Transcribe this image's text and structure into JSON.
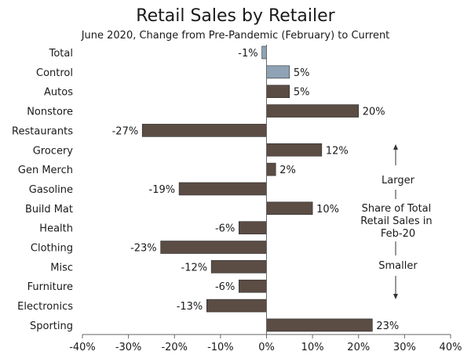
{
  "chart_data": {
    "type": "bar",
    "orientation": "horizontal",
    "title": "Retail Sales by Retailer",
    "subtitle": "June 2020, Change from Pre-Pandemic (February) to Current",
    "categories": [
      "Total",
      "Control",
      "Autos",
      "Nonstore",
      "Restaurants",
      "Grocery",
      "Gen Merch",
      "Gasoline",
      "Build Mat",
      "Health",
      "Clothing",
      "Misc",
      "Furniture",
      "Electronics",
      "Sporting"
    ],
    "values": [
      -1,
      5,
      5,
      20,
      -27,
      12,
      2,
      -19,
      10,
      -6,
      -23,
      -12,
      -6,
      -13,
      23
    ],
    "value_labels": [
      "-1%",
      "5%",
      "5%",
      "20%",
      "-27%",
      "12%",
      "2%",
      "-19%",
      "10%",
      "-6%",
      "-23%",
      "-12%",
      "-6%",
      "-13%",
      "23%"
    ],
    "highlighted_categories": [
      "Total",
      "Control"
    ],
    "xlim": [
      -40,
      40
    ],
    "xticks": [
      -40,
      -30,
      -20,
      -10,
      0,
      10,
      20,
      30,
      40
    ],
    "xtick_labels": [
      "-40%",
      "-30%",
      "-20%",
      "-10%",
      "0%",
      "10%",
      "20%",
      "30%",
      "40%"
    ],
    "xlabel": "",
    "ylabel": "",
    "grid": false,
    "colors": {
      "bar": "#5b4c44",
      "highlight": "#8fa3b6",
      "bar_edge": "#2b2b2b",
      "axis": "#666666",
      "arrow": "#333333"
    },
    "annotation": {
      "top": "Larger",
      "middle": "Share of Total Retail Sales in Feb-20",
      "bottom": "Smaller"
    }
  }
}
